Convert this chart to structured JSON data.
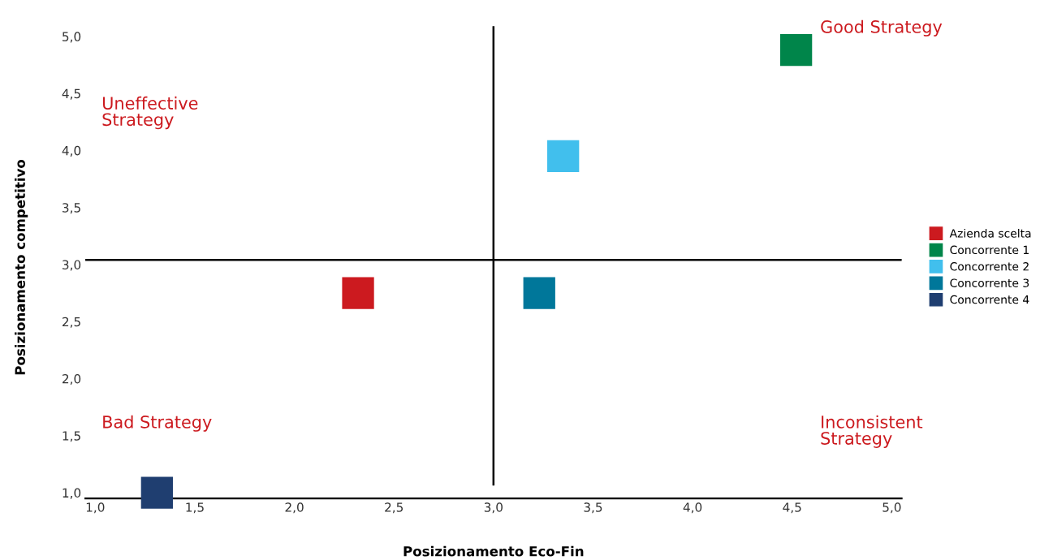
{
  "chart_data": {
    "type": "scatter",
    "xlabel": "Posizionamento Eco-Fin",
    "ylabel": "Posizionamento competitivo",
    "xlim": [
      0.95,
      5.05
    ],
    "ylim": [
      0.95,
      5.0
    ],
    "xticks": [
      {
        "value": 1.0,
        "label": "1,0"
      },
      {
        "value": 1.5,
        "label": "1,5"
      },
      {
        "value": 2.0,
        "label": "2,0"
      },
      {
        "value": 2.5,
        "label": "2,5"
      },
      {
        "value": 3.0,
        "label": "3,0"
      },
      {
        "value": 3.5,
        "label": "3,5"
      },
      {
        "value": 4.0,
        "label": "4,0"
      },
      {
        "value": 4.5,
        "label": "4,5"
      },
      {
        "value": 5.0,
        "label": "5,0"
      }
    ],
    "yticks": [
      {
        "value": 1.0,
        "label": "1,0"
      },
      {
        "value": 1.5,
        "label": "1,5"
      },
      {
        "value": 2.0,
        "label": "2,0"
      },
      {
        "value": 2.5,
        "label": "2,5"
      },
      {
        "value": 3.0,
        "label": "3,0"
      },
      {
        "value": 3.5,
        "label": "3,5"
      },
      {
        "value": 4.0,
        "label": "4,0"
      },
      {
        "value": 4.5,
        "label": "4,5"
      },
      {
        "value": 5.0,
        "label": "5,0"
      }
    ],
    "series": [
      {
        "name": "Azienda scelta",
        "color": "#cc1a1f",
        "x": [
          2.32
        ],
        "values": [
          2.75
        ]
      },
      {
        "name": "Concorrente 1",
        "color": "#00854a",
        "x": [
          4.52
        ],
        "values": [
          4.88
        ]
      },
      {
        "name": "Concorrente 2",
        "color": "#41bfed",
        "x": [
          3.35
        ],
        "values": [
          3.95
        ]
      },
      {
        "name": "Concorrente 3",
        "color": "#00779a",
        "x": [
          3.23
        ],
        "values": [
          2.75
        ]
      },
      {
        "name": "Concorrente 4",
        "color": "#1f3e70",
        "x": [
          1.31
        ],
        "values": [
          1.0
        ]
      }
    ],
    "ref_lines": [
      {
        "axis": "x",
        "value": 3.0,
        "color": "#000000"
      },
      {
        "axis": "y",
        "value": 3.04,
        "color": "#000000"
      }
    ],
    "annotations": [
      "Good Strategy",
      "Uneffective\nStrategy",
      "Bad Strategy",
      "Inconsistent\nStrategy"
    ],
    "marker": "square",
    "grid": false,
    "legend": "right"
  }
}
